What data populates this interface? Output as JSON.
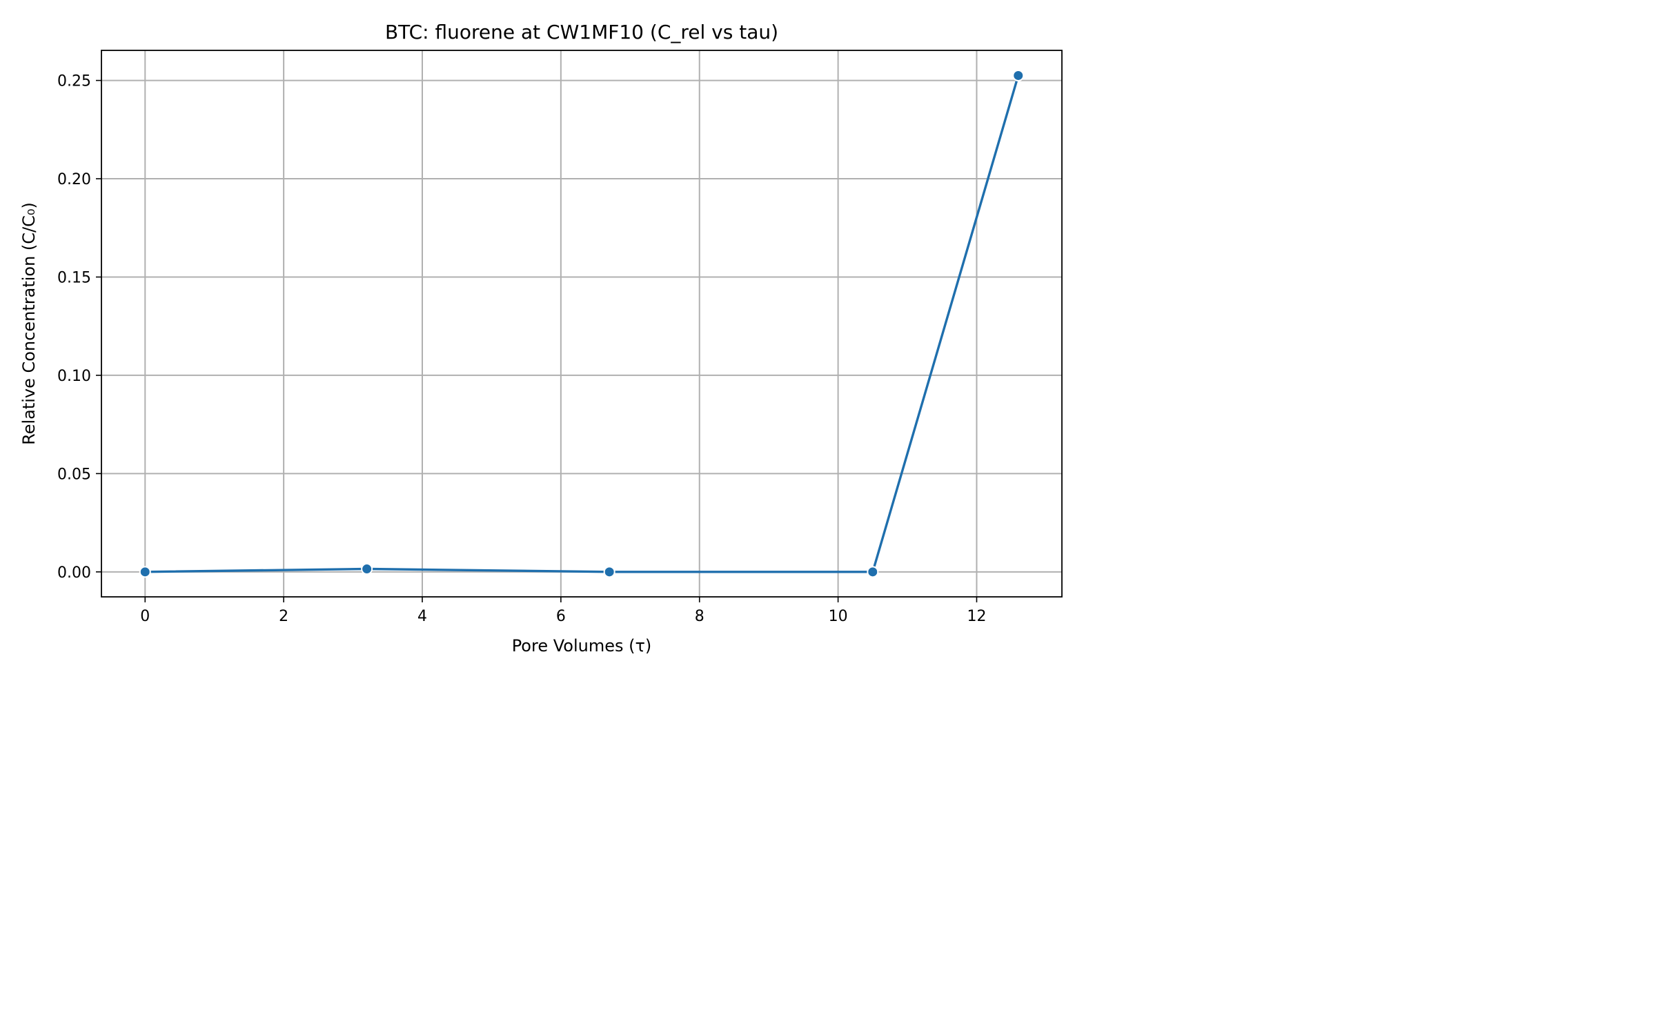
{
  "chart_data": {
    "type": "line",
    "title": "BTC: fluorene at CW1MF10 (C_rel vs tau)",
    "xlabel": "Pore Volumes (τ)",
    "ylabel": "Relative Concentration (C/C₀)",
    "xlim": [
      -0.63,
      13.23
    ],
    "ylim": [
      -0.0127,
      0.2653
    ],
    "xticks": [
      0,
      2,
      4,
      6,
      8,
      10,
      12
    ],
    "xtick_labels": [
      "0",
      "2",
      "4",
      "6",
      "8",
      "10",
      "12"
    ],
    "yticks": [
      0.0,
      0.05,
      0.1,
      0.15,
      0.2,
      0.25
    ],
    "ytick_labels": [
      "0.00",
      "0.05",
      "0.10",
      "0.15",
      "0.20",
      "0.25"
    ],
    "grid": true,
    "series": [
      {
        "color": "#1f6fad",
        "x": [
          0,
          3.2,
          6.7,
          10.5,
          12.6
        ],
        "y": [
          0.0,
          0.0015,
          0.0,
          0.0,
          0.2525
        ]
      }
    ]
  }
}
